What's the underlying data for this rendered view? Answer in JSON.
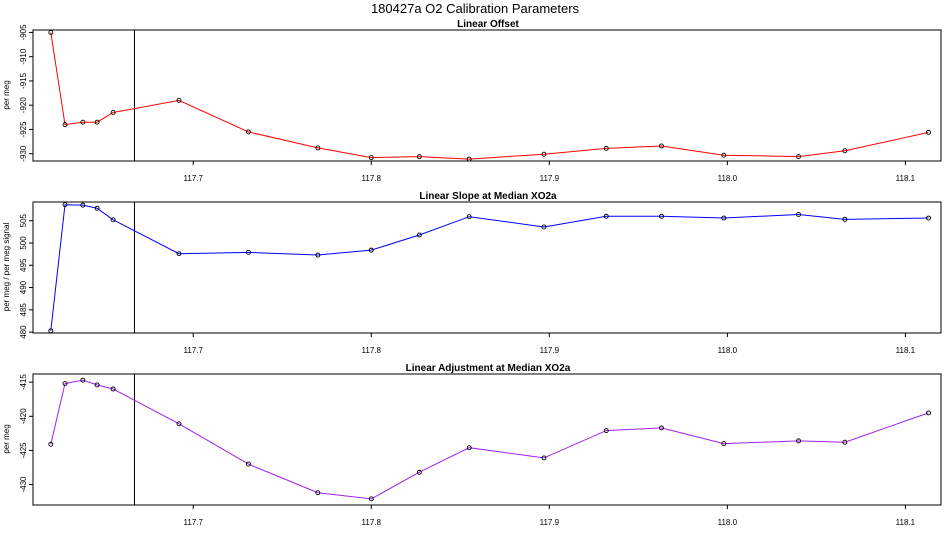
{
  "figure": {
    "title": "180427a   O2 Calibration Parameters"
  },
  "colors": {
    "panel_1": "#ff0000",
    "panel_2": "#0000ff",
    "panel_3": "#a020f0"
  },
  "chart_data": [
    {
      "type": "line",
      "title": "Linear Offset",
      "xlabel": "",
      "ylabel": "per meg",
      "color": "#ff0000",
      "x": [
        117.62,
        117.628,
        117.638,
        117.646,
        117.655,
        117.692,
        117.731,
        117.77,
        117.8,
        117.827,
        117.855,
        117.897,
        117.932,
        117.963,
        117.998,
        118.04,
        118.066,
        118.113
      ],
      "y": [
        -905,
        -924,
        -923.5,
        -923.5,
        -921.5,
        -919,
        -925.5,
        -928.8,
        -930.8,
        -930.6,
        -931.1,
        -930.1,
        -928.9,
        -928.4,
        -930.3,
        -930.6,
        -929.4,
        -925.6
      ],
      "xlim": [
        117.61,
        118.12
      ],
      "ylim": [
        -931.5,
        -904.5
      ],
      "xticks": [
        117.7,
        117.8,
        117.9,
        118.0,
        118.1
      ],
      "xtick_labels": [
        "117.7",
        "117.8",
        "117.9",
        "118.0",
        "118.1"
      ],
      "yticks": [
        -905,
        -910,
        -915,
        -920,
        -925,
        -930
      ],
      "ytick_labels": [
        "-905",
        "-910",
        "-915",
        "-920",
        "-925",
        "-930"
      ],
      "vline_x": 117.667,
      "grid": false
    },
    {
      "type": "line",
      "title": "Linear Slope at Median XO2a",
      "xlabel": "",
      "ylabel": "per meg / per meg signal",
      "color": "#0000ff",
      "x": [
        117.62,
        117.628,
        117.638,
        117.646,
        117.655,
        117.692,
        117.731,
        117.77,
        117.8,
        117.827,
        117.855,
        117.897,
        117.932,
        117.963,
        117.998,
        118.04,
        118.066,
        118.113
      ],
      "y": [
        480.3,
        508.6,
        508.5,
        507.8,
        505.2,
        497.6,
        497.9,
        497.3,
        498.4,
        501.8,
        505.9,
        503.6,
        506.0,
        506.0,
        505.6,
        506.4,
        505.3,
        505.6
      ],
      "xlim": [
        117.61,
        118.12
      ],
      "ylim": [
        479.8,
        509.2
      ],
      "xticks": [
        117.7,
        117.8,
        117.9,
        118.0,
        118.1
      ],
      "xtick_labels": [
        "117.7",
        "117.8",
        "117.9",
        "118.0",
        "118.1"
      ],
      "yticks": [
        480,
        485,
        490,
        495,
        500,
        505
      ],
      "ytick_labels": [
        "480",
        "485",
        "490",
        "495",
        "500",
        "505"
      ],
      "vline_x": 117.667,
      "grid": false
    },
    {
      "type": "line",
      "title": "Linear Adjustment at Median XO2a",
      "xlabel": "",
      "ylabel": "per meg",
      "color": "#a020f0",
      "x": [
        117.62,
        117.628,
        117.638,
        117.646,
        117.655,
        117.692,
        117.731,
        117.77,
        117.8,
        117.827,
        117.855,
        117.897,
        117.932,
        117.963,
        117.998,
        118.04,
        118.066,
        118.113
      ],
      "y": [
        -424.1,
        -415.2,
        -414.7,
        -415.4,
        -416.0,
        -421.1,
        -427.0,
        -431.2,
        -432.1,
        -428.2,
        -424.6,
        -426.1,
        -422.1,
        -421.7,
        -424.0,
        -423.6,
        -423.8,
        -419.5
      ],
      "xlim": [
        117.61,
        118.12
      ],
      "ylim": [
        -433.0,
        -413.8
      ],
      "xticks": [
        117.7,
        117.8,
        117.9,
        118.0,
        118.1
      ],
      "xtick_labels": [
        "117.7",
        "117.8",
        "117.9",
        "118.0",
        "118.1"
      ],
      "yticks": [
        -415,
        -420,
        -425,
        -430
      ],
      "ytick_labels": [
        "-415",
        "-420",
        "-425",
        "-430"
      ],
      "vline_x": 117.667,
      "grid": false
    }
  ]
}
